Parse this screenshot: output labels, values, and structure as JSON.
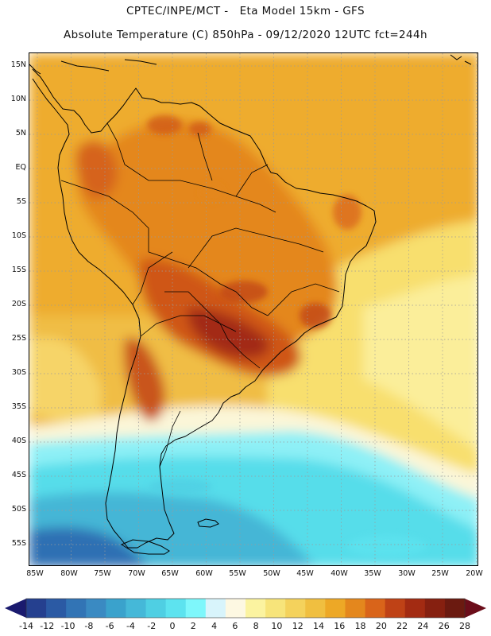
{
  "title": {
    "line1": "CPTEC/INPE/MCT -   Eta Model 15km - GFS",
    "line2": "Absolute Temperature (C) 850hPa - 09/12/2020 12UTC fct=244h"
  },
  "map": {
    "region": "South America",
    "lat_labels": [
      "15N",
      "10N",
      "5N",
      "EQ",
      "5S",
      "10S",
      "15S",
      "20S",
      "25S",
      "30S",
      "35S",
      "40S",
      "45S",
      "50S",
      "55S"
    ],
    "lon_labels": [
      "85W",
      "80W",
      "75W",
      "70W",
      "65W",
      "60W",
      "55W",
      "50W",
      "45W",
      "40W",
      "35W",
      "30W",
      "25W",
      "20W"
    ]
  },
  "colorbar": {
    "labels": [
      "-14",
      "-12",
      "-10",
      "-8",
      "-6",
      "-4",
      "-2",
      "0",
      "2",
      "4",
      "6",
      "8",
      "10",
      "12",
      "14",
      "16",
      "18",
      "20",
      "22",
      "24",
      "26",
      "28"
    ],
    "below_color": "#1a1a6e",
    "above_color": "#6b0d1a",
    "colors": [
      "#25408f",
      "#2b5aa4",
      "#3274b5",
      "#3a8ac2",
      "#3aa2cc",
      "#45b8d8",
      "#4fcfe3",
      "#5de3ef",
      "#7ef7fb",
      "#d8f4fb",
      "#fdf8e2",
      "#fbf3a0",
      "#f7e47a",
      "#f4d25c",
      "#f0bf40",
      "#eda826",
      "#e4871d",
      "#d9641a",
      "#bf4216",
      "#a32b12",
      "#862010",
      "#6b1a10"
    ]
  }
}
